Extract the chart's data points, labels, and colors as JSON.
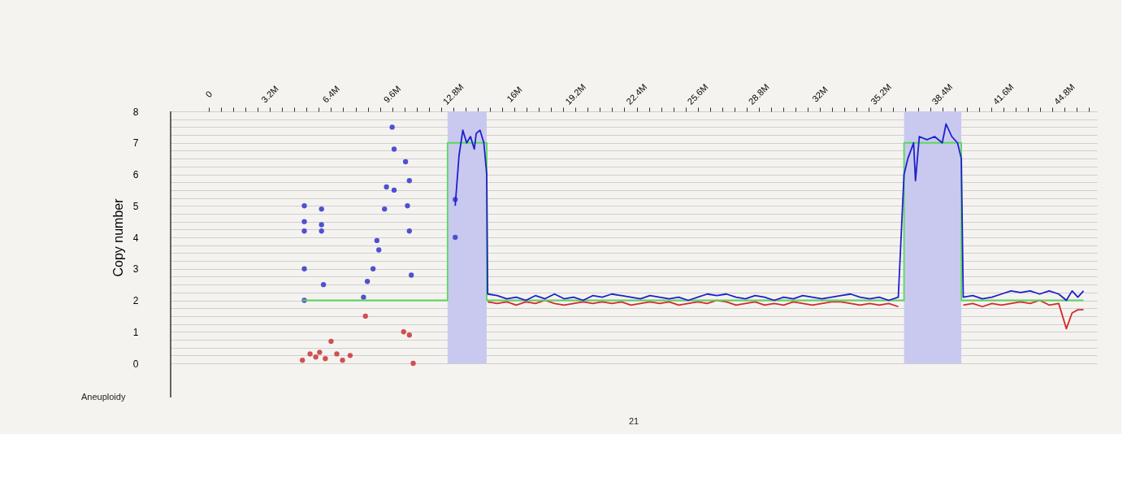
{
  "chart_data": {
    "type": "line",
    "ylabel": "Copy number",
    "annotations": [
      "Aneuploidy",
      "21"
    ],
    "xlim": [
      -2.0,
      46.5
    ],
    "xticks": [
      {
        "value": 0,
        "label": "0"
      },
      {
        "value": 0.64,
        "label": null
      },
      {
        "value": 1.28,
        "label": null
      },
      {
        "value": 1.92,
        "label": null
      },
      {
        "value": 2.56,
        "label": null
      },
      {
        "value": 3.2,
        "label": "3.2M"
      },
      {
        "value": 3.84,
        "label": null
      },
      {
        "value": 4.48,
        "label": null
      },
      {
        "value": 5.12,
        "label": null
      },
      {
        "value": 5.76,
        "label": null
      },
      {
        "value": 6.4,
        "label": "6.4M"
      },
      {
        "value": 7.04,
        "label": null
      },
      {
        "value": 7.68,
        "label": null
      },
      {
        "value": 8.32,
        "label": null
      },
      {
        "value": 8.96,
        "label": null
      },
      {
        "value": 9.6,
        "label": "9.6M"
      },
      {
        "value": 10.24,
        "label": null
      },
      {
        "value": 10.88,
        "label": null
      },
      {
        "value": 11.52,
        "label": null
      },
      {
        "value": 12.16,
        "label": null
      },
      {
        "value": 12.8,
        "label": "12.8M"
      },
      {
        "value": 13.44,
        "label": null
      },
      {
        "value": 14.08,
        "label": null
      },
      {
        "value": 14.72,
        "label": null
      },
      {
        "value": 15.36,
        "label": null
      },
      {
        "value": 16,
        "label": "16M"
      },
      {
        "value": 16.64,
        "label": null
      },
      {
        "value": 17.28,
        "label": null
      },
      {
        "value": 17.92,
        "label": null
      },
      {
        "value": 18.56,
        "label": null
      },
      {
        "value": 19.2,
        "label": "19.2M"
      },
      {
        "value": 19.84,
        "label": null
      },
      {
        "value": 20.48,
        "label": null
      },
      {
        "value": 21.12,
        "label": null
      },
      {
        "value": 21.76,
        "label": null
      },
      {
        "value": 22.4,
        "label": "22.4M"
      },
      {
        "value": 23.04,
        "label": null
      },
      {
        "value": 23.68,
        "label": null
      },
      {
        "value": 24.32,
        "label": null
      },
      {
        "value": 24.96,
        "label": null
      },
      {
        "value": 25.6,
        "label": "25.6M"
      },
      {
        "value": 26.24,
        "label": null
      },
      {
        "value": 26.88,
        "label": null
      },
      {
        "value": 27.52,
        "label": null
      },
      {
        "value": 28.16,
        "label": null
      },
      {
        "value": 28.8,
        "label": "28.8M"
      },
      {
        "value": 29.44,
        "label": null
      },
      {
        "value": 30.08,
        "label": null
      },
      {
        "value": 30.72,
        "label": null
      },
      {
        "value": 31.36,
        "label": null
      },
      {
        "value": 32,
        "label": "32M"
      },
      {
        "value": 32.64,
        "label": null
      },
      {
        "value": 33.28,
        "label": null
      },
      {
        "value": 33.92,
        "label": null
      },
      {
        "value": 34.56,
        "label": null
      },
      {
        "value": 35.2,
        "label": "35.2M"
      },
      {
        "value": 35.84,
        "label": null
      },
      {
        "value": 36.48,
        "label": null
      },
      {
        "value": 37.12,
        "label": null
      },
      {
        "value": 37.76,
        "label": null
      },
      {
        "value": 38.4,
        "label": "38.4M"
      },
      {
        "value": 39.04,
        "label": null
      },
      {
        "value": 39.68,
        "label": null
      },
      {
        "value": 40.32,
        "label": null
      },
      {
        "value": 40.96,
        "label": null
      },
      {
        "value": 41.6,
        "label": "41.6M"
      },
      {
        "value": 42.24,
        "label": null
      },
      {
        "value": 42.88,
        "label": null
      },
      {
        "value": 43.52,
        "label": null
      },
      {
        "value": 44.16,
        "label": null
      },
      {
        "value": 44.8,
        "label": "44.8M"
      },
      {
        "value": 45.44,
        "label": null
      },
      {
        "value": 46.08,
        "label": null
      }
    ],
    "ylim": [
      0,
      8
    ],
    "yticks": [
      0,
      {
        "value": 0.25,
        "label": null
      },
      {
        "value": 0.5,
        "label": null
      },
      {
        "value": 0.75,
        "label": null
      },
      1,
      {
        "value": 1.25,
        "label": null
      },
      {
        "value": 1.5,
        "label": null
      },
      {
        "value": 1.75,
        "label": null
      },
      2,
      {
        "value": 2.25,
        "label": null
      },
      {
        "value": 2.5,
        "label": null
      },
      {
        "value": 2.75,
        "label": null
      },
      3,
      {
        "value": 3.25,
        "label": null
      },
      {
        "value": 3.5,
        "label": null
      },
      {
        "value": 3.75,
        "label": null
      },
      4,
      {
        "value": 4.25,
        "label": null
      },
      {
        "value": 4.5,
        "label": null
      },
      {
        "value": 4.75,
        "label": null
      },
      5,
      {
        "value": 5.25,
        "label": null
      },
      {
        "value": 5.5,
        "label": null
      },
      {
        "value": 5.75,
        "label": null
      },
      6,
      {
        "value": 6.25,
        "label": null
      },
      {
        "value": 6.5,
        "label": null
      },
      {
        "value": 6.75,
        "label": null
      },
      7,
      {
        "value": 7.25,
        "label": null
      },
      {
        "value": 7.5,
        "label": null
      },
      {
        "value": 7.75,
        "label": null
      },
      8
    ],
    "grid": "y",
    "bands": [
      {
        "axis": "x",
        "from": 12.5,
        "to": 14.55,
        "color": "#c9c9ef"
      },
      {
        "axis": "x",
        "from": 36.4,
        "to": 39.4,
        "color": "#c9c9ef"
      }
    ],
    "series": [
      {
        "type": "scatter",
        "color": "#d05050",
        "x": [
          4.9,
          5.3,
          5.6,
          5.8,
          6.1,
          6.4,
          6.7,
          7.0,
          7.4,
          8.2,
          10.2,
          10.5,
          10.7
        ],
        "values": [
          0.1,
          0.3,
          0.2,
          0.35,
          0.15,
          0.7,
          0.3,
          0.1,
          0.25,
          1.5,
          1.0,
          0.9,
          0.0
        ]
      },
      {
        "type": "scatter",
        "color": "#5050d0",
        "x": [
          5.0,
          5.0,
          5.0,
          5.0,
          5.0,
          5.9,
          5.9,
          5.9,
          6.0,
          8.1,
          8.3,
          8.6,
          8.8,
          8.9,
          9.2,
          9.3,
          9.6,
          9.7,
          9.7,
          10.3,
          10.5,
          10.4,
          10.5,
          10.6,
          12.9,
          12.9
        ],
        "values": [
          5.0,
          4.5,
          4.2,
          3.0,
          2.0,
          4.9,
          4.4,
          4.2,
          2.5,
          2.1,
          2.6,
          3.0,
          3.9,
          3.6,
          4.9,
          5.6,
          7.5,
          6.8,
          5.5,
          6.4,
          5.8,
          5.0,
          4.2,
          2.8,
          5.2,
          4.0
        ]
      },
      {
        "type": "line",
        "color": "#d42a2a",
        "x": [
          14.6,
          15.1,
          15.6,
          16.1,
          16.6,
          17.1,
          17.6,
          18.1,
          18.6,
          19.1,
          19.6,
          20.1,
          20.6,
          21.1,
          21.6,
          22.1,
          22.6,
          23.1,
          23.6,
          24.1,
          24.6,
          25.1,
          25.6,
          26.1,
          26.6,
          27.1,
          27.6,
          28.1,
          28.6,
          29.1,
          29.6,
          30.1,
          30.6,
          31.1,
          31.6,
          32.1,
          32.6,
          33.1,
          33.6,
          34.1,
          34.6,
          35.1,
          35.6,
          36.1,
          37.0,
          39.5,
          40.0,
          40.5,
          41.0,
          41.5,
          42.0,
          42.5,
          43.0,
          43.5,
          44.0,
          44.5,
          44.9,
          45.2,
          45.5,
          45.8
        ],
        "values": [
          1.95,
          1.9,
          1.95,
          1.85,
          1.95,
          1.9,
          2.0,
          1.9,
          1.85,
          1.9,
          1.95,
          1.9,
          1.95,
          1.9,
          1.95,
          1.85,
          1.9,
          1.95,
          1.9,
          1.95,
          1.85,
          1.9,
          1.95,
          1.9,
          2.0,
          1.95,
          1.85,
          1.9,
          1.95,
          1.85,
          1.9,
          1.85,
          1.95,
          1.9,
          1.85,
          1.9,
          1.95,
          1.95,
          1.9,
          1.85,
          1.9,
          1.85,
          1.9,
          1.8,
          null,
          1.85,
          1.9,
          1.8,
          1.9,
          1.85,
          1.9,
          1.95,
          1.9,
          2.0,
          1.85,
          1.9,
          1.1,
          1.6,
          1.7,
          1.7
        ]
      },
      {
        "type": "line",
        "color": "#5ad85a",
        "x": [
          4.9,
          12.5,
          12.5,
          14.55,
          14.55,
          36.4,
          36.4,
          39.4,
          39.4,
          45.8
        ],
        "values": [
          2,
          2,
          7,
          7,
          2,
          2,
          7,
          7,
          2,
          2
        ]
      },
      {
        "type": "line",
        "color": "#1f1fcc",
        "x": [
          12.9,
          13.1,
          13.3,
          13.5,
          13.7,
          13.9,
          14.0,
          14.2,
          14.4,
          14.55,
          14.6,
          15.1,
          15.6,
          16.1,
          16.6,
          17.1,
          17.6,
          18.1,
          18.6,
          19.1,
          19.6,
          20.1,
          20.6,
          21.1,
          21.6,
          22.1,
          22.6,
          23.1,
          23.6,
          24.1,
          24.6,
          25.1,
          25.6,
          26.1,
          26.6,
          27.1,
          27.6,
          28.1,
          28.6,
          29.1,
          29.6,
          30.1,
          30.6,
          31.1,
          31.6,
          32.1,
          32.6,
          33.1,
          33.6,
          34.1,
          34.6,
          35.1,
          35.6,
          36.1,
          36.4,
          36.6,
          36.9,
          37.0,
          37.2,
          37.6,
          38.0,
          38.4,
          38.6,
          38.9,
          39.2,
          39.4,
          39.5,
          40.0,
          40.5,
          41.0,
          41.5,
          42.0,
          42.5,
          43.0,
          43.5,
          44.0,
          44.5,
          44.9,
          45.2,
          45.5,
          45.8
        ],
        "values": [
          5.0,
          6.6,
          7.4,
          7.0,
          7.2,
          6.8,
          7.3,
          7.4,
          7.0,
          6.0,
          2.2,
          2.15,
          2.05,
          2.1,
          2.0,
          2.15,
          2.05,
          2.2,
          2.05,
          2.1,
          2.0,
          2.15,
          2.1,
          2.2,
          2.15,
          2.1,
          2.05,
          2.15,
          2.1,
          2.05,
          2.1,
          2.0,
          2.1,
          2.2,
          2.15,
          2.2,
          2.1,
          2.05,
          2.15,
          2.1,
          2.0,
          2.1,
          2.05,
          2.15,
          2.1,
          2.05,
          2.1,
          2.15,
          2.2,
          2.1,
          2.05,
          2.1,
          2.0,
          2.1,
          6.0,
          6.5,
          7.0,
          5.8,
          7.2,
          7.1,
          7.2,
          7.0,
          7.6,
          7.2,
          7.0,
          6.5,
          2.1,
          2.15,
          2.05,
          2.1,
          2.2,
          2.3,
          2.25,
          2.3,
          2.2,
          2.3,
          2.2,
          2.0,
          2.3,
          2.1,
          2.3
        ]
      }
    ]
  }
}
